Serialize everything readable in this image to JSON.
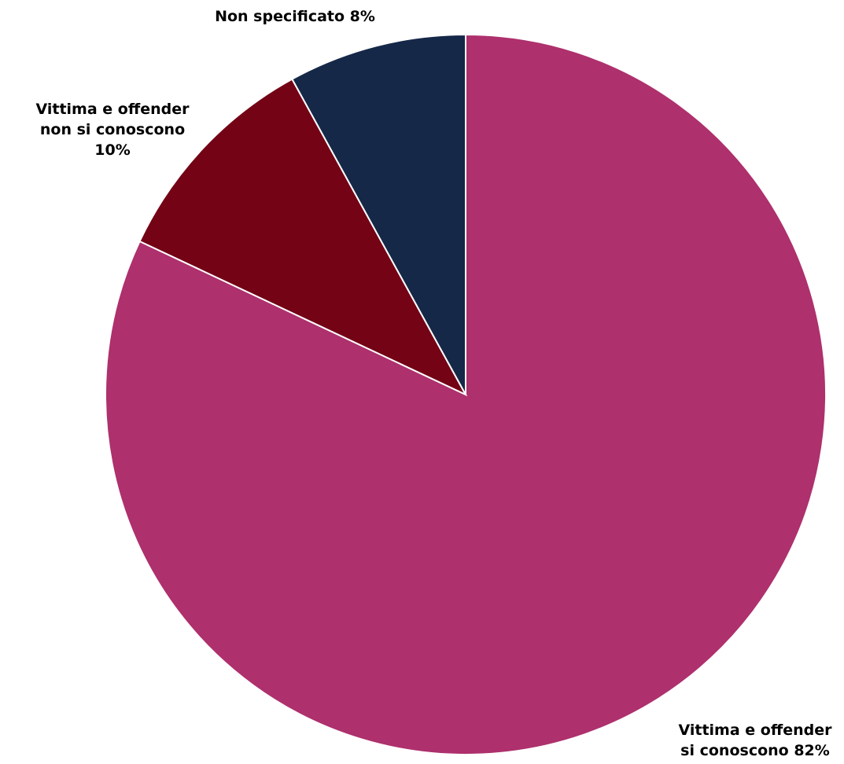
{
  "chart_data": {
    "type": "pie",
    "title": "",
    "slices": [
      {
        "category": "Vittima e offender si conoscono",
        "value": 82,
        "color": "#AE306D",
        "label_lines": [
          "Vittima e offender",
          "si conoscono 82%"
        ]
      },
      {
        "category": "Vittima e offender non si conoscono",
        "value": 10,
        "color": "#730315",
        "label_lines": [
          "Vittima e offender",
          "non si conoscono",
          "10%"
        ]
      },
      {
        "category": "Non specificato",
        "value": 8,
        "color": "#162848",
        "label_lines": [
          "Non specificato 8%"
        ]
      }
    ],
    "start_angle": "12 o'clock",
    "direction": "clockwise",
    "legend": "none"
  }
}
